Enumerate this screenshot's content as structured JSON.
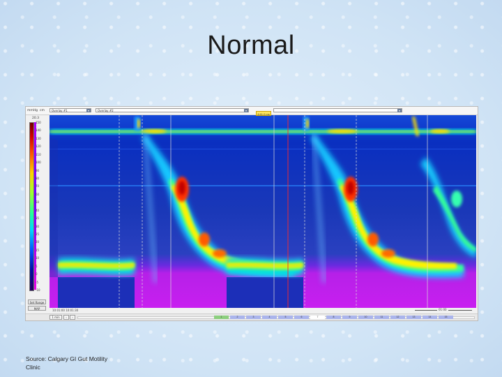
{
  "slide": {
    "title": "Normal",
    "source": "Source: Calgary GI Gut Motility Clinic",
    "background_color": "#d7e8f6"
  },
  "viewer": {
    "topbar": {
      "unit_left": "mmHg",
      "unit_right": "cm",
      "combo_1": "Overlay #1",
      "combo_2": "Overlay #2",
      "time_marker": "4:61.0 ms"
    },
    "colorbar": {
      "scale_label": "20.3",
      "ticks": [
        "150",
        "140",
        "130",
        "120",
        "110",
        "100",
        "90",
        "80",
        "70",
        "60",
        "50",
        "40",
        "35",
        "30",
        "25",
        "20",
        "15",
        "10",
        "5",
        "0",
        "-5",
        "-10"
      ],
      "side_label": "1.21"
    },
    "buttons": {
      "set_range": "Set Range",
      "map": "MAP"
    },
    "ruler": {
      "left_text": "10:01:00     10:01:30",
      "right_text": "01:00"
    },
    "bottom_nav": {
      "window_label": "1 min",
      "segments": [
        "1",
        "2",
        "3",
        "4",
        "5",
        "6",
        "7",
        "8",
        "9",
        "10",
        "11",
        "12",
        "13",
        "14",
        "15"
      ]
    },
    "icons": [
      "dropdown-arrow-icon",
      "nav-arrow-left-icon",
      "nav-arrow-right-icon"
    ]
  }
}
